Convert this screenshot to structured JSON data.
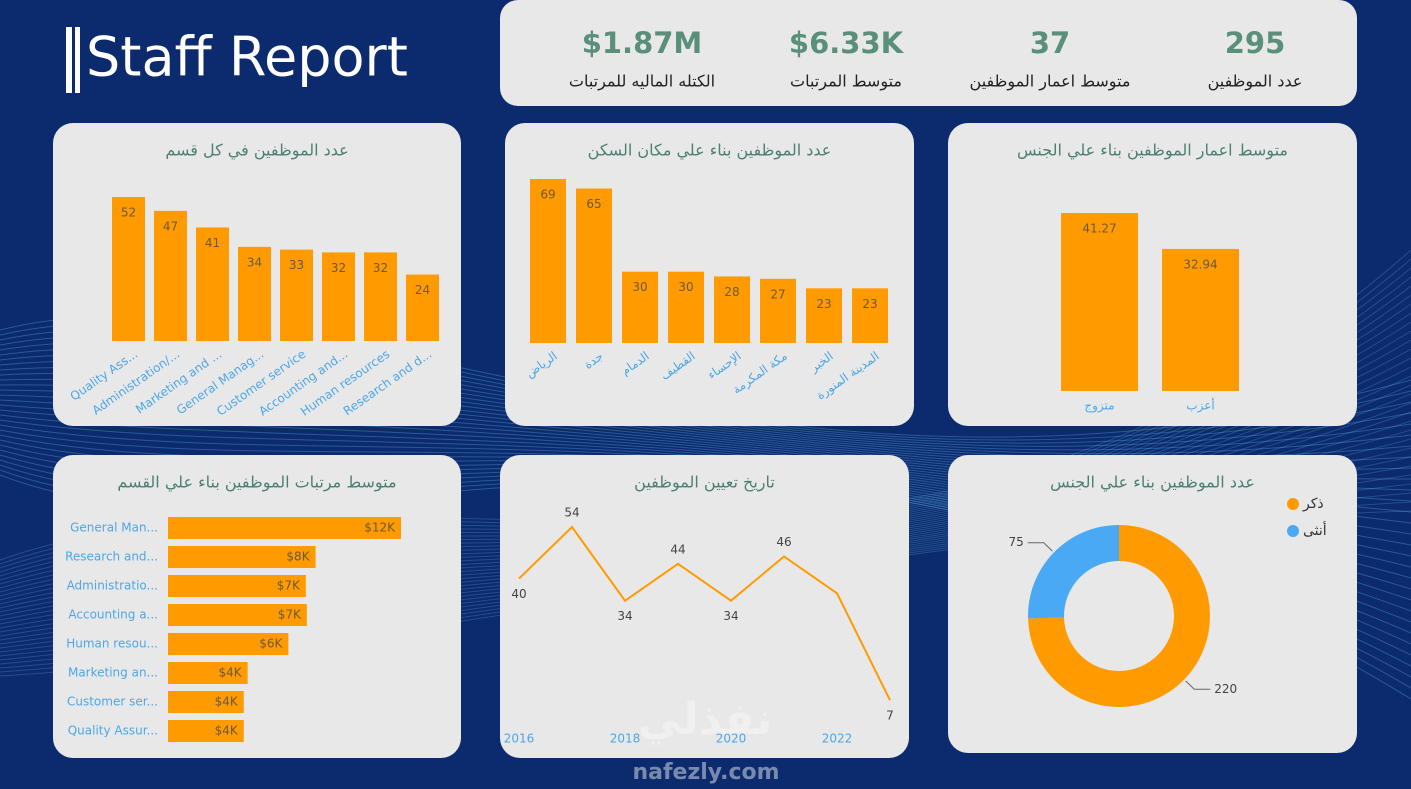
{
  "title": "Staff Report",
  "kpis": [
    {
      "value": "$1.87M",
      "label": "الكتله الماليه للمرتبات"
    },
    {
      "value": "$6.33K",
      "label": "متوسط المرتبات"
    },
    {
      "value": "37",
      "label": "متوسط اعمار الموظفين"
    },
    {
      "value": "295",
      "label": "عدد الموظفين"
    }
  ],
  "watermark": {
    "arabic": "نفذلي",
    "latin": "nafezly.com"
  },
  "chart_data": [
    {
      "type": "bar",
      "title": "عدد الموظفين في كل قسم",
      "categories": [
        "Quality Ass...",
        "Administration/...",
        "Marketing and ...",
        "General Manag...",
        "Customer service",
        "Accounting and...",
        "Human resources",
        "Research and d..."
      ],
      "values": [
        52,
        47,
        41,
        34,
        33,
        32,
        32,
        24
      ],
      "color": "#ff9a00"
    },
    {
      "type": "bar",
      "title": "عدد الموظفين بناء علي مكان السكن",
      "categories": [
        "الرياض",
        "جدة",
        "الدمام",
        "القطيف",
        "الإحساء",
        "مكة المكرمة",
        "الخبر",
        "المدينة المنورة"
      ],
      "values": [
        69,
        65,
        30,
        30,
        28,
        27,
        23,
        23
      ],
      "color": "#ff9a00"
    },
    {
      "type": "bar",
      "title": "متوسط اعمار الموظفين بناء علي الجنس",
      "categories": [
        "متزوج",
        "أعزب"
      ],
      "values": [
        41.27,
        32.94
      ],
      "color": "#ff9a00"
    },
    {
      "type": "hbar",
      "title": "متوسط مرتبات الموظفين بناء علي القسم",
      "categories": [
        "General Man...",
        "Research and...",
        "Administratio...",
        "Accounting a...",
        "Human resou...",
        "Marketing an...",
        "Customer ser...",
        "Quality Assur..."
      ],
      "values": [
        12000,
        7600,
        7100,
        7150,
        6200,
        4100,
        3900,
        3900
      ],
      "value_labels": [
        "$12K",
        "$8K",
        "$7K",
        "$7K",
        "$6K",
        "$4K",
        "$4K",
        "$4K"
      ],
      "color": "#ff9a00"
    },
    {
      "type": "line",
      "title": "تاريخ تعيين الموظفين",
      "x": [
        2016,
        2017,
        2018,
        2019,
        2020,
        2021,
        2022,
        2023
      ],
      "values": [
        40,
        54,
        34,
        44,
        34,
        46,
        36,
        7
      ],
      "value_labels": [
        "40",
        "54",
        "34",
        "44",
        "34",
        "46",
        null,
        "7"
      ],
      "xlim": [
        2016,
        2023
      ],
      "xticks": [
        2016,
        2018,
        2020,
        2022
      ],
      "color": "#ff9a00"
    },
    {
      "type": "donut",
      "title": "عدد الموظفين بناء علي الجنس",
      "categories": [
        "ذكر",
        "أنثى"
      ],
      "values": [
        220,
        75
      ],
      "colors": [
        "#ff9a00",
        "#4aa9f5"
      ],
      "legend": "top-right"
    }
  ]
}
